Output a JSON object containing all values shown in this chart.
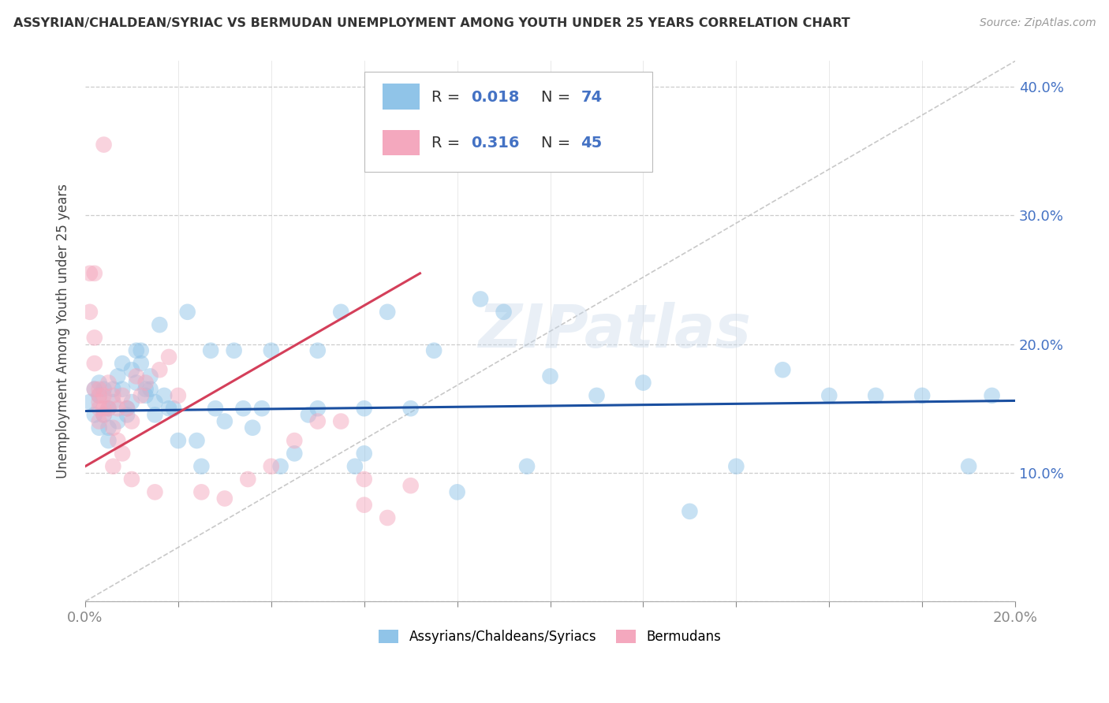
{
  "title": "ASSYRIAN/CHALDEAN/SYRIAC VS BERMUDAN UNEMPLOYMENT AMONG YOUTH UNDER 25 YEARS CORRELATION CHART",
  "source": "Source: ZipAtlas.com",
  "ylabel": "Unemployment Among Youth under 25 years",
  "xlim": [
    0.0,
    0.2
  ],
  "ylim": [
    0.0,
    0.42
  ],
  "xticks": [
    0.0,
    0.02,
    0.04,
    0.06,
    0.08,
    0.1,
    0.12,
    0.14,
    0.16,
    0.18,
    0.2
  ],
  "yticks": [
    0.0,
    0.1,
    0.2,
    0.3,
    0.4
  ],
  "legend_label1": "Assyrians/Chaldeans/Syriacs",
  "legend_label2": "Bermudans",
  "color_blue": "#90c4e8",
  "color_pink": "#f4a8be",
  "color_blue_line": "#1a4fa0",
  "color_pink_line": "#d43f5a",
  "watermark": "ZIPatlas",
  "blue_points_x": [
    0.001,
    0.002,
    0.002,
    0.003,
    0.003,
    0.003,
    0.004,
    0.004,
    0.005,
    0.005,
    0.005,
    0.006,
    0.006,
    0.007,
    0.007,
    0.008,
    0.008,
    0.009,
    0.009,
    0.01,
    0.01,
    0.011,
    0.011,
    0.012,
    0.012,
    0.013,
    0.013,
    0.014,
    0.014,
    0.015,
    0.015,
    0.016,
    0.017,
    0.018,
    0.019,
    0.02,
    0.022,
    0.024,
    0.025,
    0.027,
    0.028,
    0.03,
    0.032,
    0.034,
    0.036,
    0.038,
    0.04,
    0.042,
    0.045,
    0.048,
    0.05,
    0.055,
    0.058,
    0.06,
    0.065,
    0.07,
    0.075,
    0.08,
    0.085,
    0.09,
    0.095,
    0.1,
    0.11,
    0.12,
    0.13,
    0.14,
    0.15,
    0.16,
    0.17,
    0.18,
    0.05,
    0.06,
    0.19,
    0.195
  ],
  "blue_points_y": [
    0.155,
    0.165,
    0.145,
    0.16,
    0.17,
    0.135,
    0.165,
    0.145,
    0.15,
    0.135,
    0.125,
    0.155,
    0.165,
    0.175,
    0.14,
    0.165,
    0.185,
    0.15,
    0.145,
    0.155,
    0.18,
    0.17,
    0.195,
    0.195,
    0.185,
    0.165,
    0.16,
    0.165,
    0.175,
    0.155,
    0.145,
    0.215,
    0.16,
    0.15,
    0.15,
    0.125,
    0.225,
    0.125,
    0.105,
    0.195,
    0.15,
    0.14,
    0.195,
    0.15,
    0.135,
    0.15,
    0.195,
    0.105,
    0.115,
    0.145,
    0.195,
    0.225,
    0.105,
    0.15,
    0.225,
    0.15,
    0.195,
    0.085,
    0.235,
    0.225,
    0.105,
    0.175,
    0.16,
    0.17,
    0.07,
    0.105,
    0.18,
    0.16,
    0.16,
    0.16,
    0.15,
    0.115,
    0.105,
    0.16
  ],
  "pink_points_x": [
    0.001,
    0.001,
    0.002,
    0.002,
    0.002,
    0.002,
    0.003,
    0.003,
    0.003,
    0.003,
    0.003,
    0.004,
    0.004,
    0.004,
    0.005,
    0.005,
    0.006,
    0.006,
    0.006,
    0.007,
    0.007,
    0.008,
    0.008,
    0.009,
    0.01,
    0.01,
    0.011,
    0.012,
    0.013,
    0.015,
    0.016,
    0.018,
    0.02,
    0.025,
    0.03,
    0.035,
    0.04,
    0.045,
    0.05,
    0.055,
    0.06,
    0.06,
    0.065,
    0.07,
    0.004
  ],
  "pink_points_y": [
    0.255,
    0.225,
    0.205,
    0.185,
    0.165,
    0.255,
    0.165,
    0.16,
    0.155,
    0.15,
    0.14,
    0.16,
    0.15,
    0.145,
    0.17,
    0.15,
    0.16,
    0.135,
    0.105,
    0.15,
    0.125,
    0.16,
    0.115,
    0.15,
    0.14,
    0.095,
    0.175,
    0.16,
    0.17,
    0.085,
    0.18,
    0.19,
    0.16,
    0.085,
    0.08,
    0.095,
    0.105,
    0.125,
    0.14,
    0.14,
    0.075,
    0.095,
    0.065,
    0.09,
    0.355
  ],
  "blue_trend_x": [
    0.0,
    0.2
  ],
  "blue_trend_y": [
    0.148,
    0.156
  ],
  "pink_trend_x": [
    0.0,
    0.072
  ],
  "pink_trend_y": [
    0.105,
    0.255
  ],
  "ref_line_x": [
    0.0,
    0.2
  ],
  "ref_line_y": [
    0.0,
    0.42
  ],
  "background_color": "#ffffff",
  "grid_color": "#cccccc"
}
